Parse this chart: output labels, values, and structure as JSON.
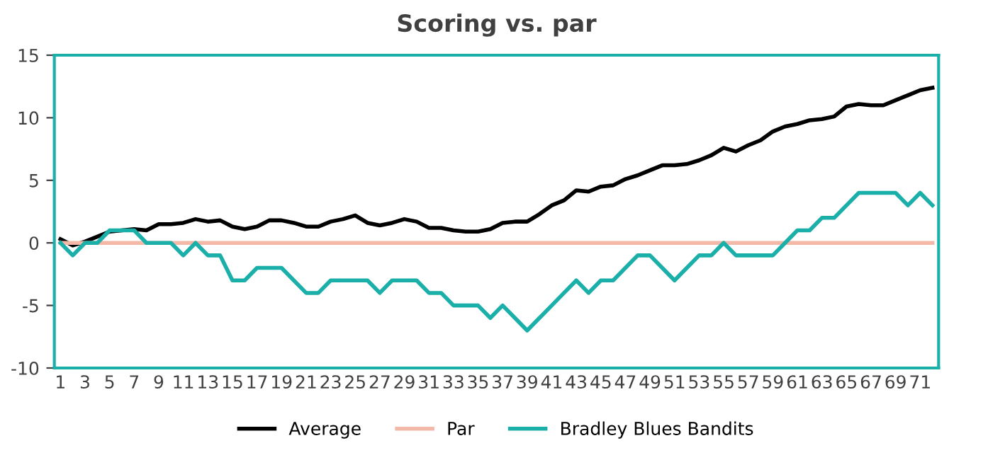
{
  "chart_data": {
    "type": "line",
    "title": "Scoring vs. par",
    "categories": [
      "1",
      null,
      "3",
      null,
      "5",
      null,
      "7",
      null,
      "9",
      null,
      "11",
      null,
      "13",
      null,
      "15",
      null,
      "17",
      null,
      "19",
      null,
      "21",
      null,
      "23",
      null,
      "25",
      null,
      "27",
      null,
      "29",
      null,
      "31",
      null,
      "33",
      null,
      "35",
      null,
      "37",
      null,
      "39",
      null,
      "41",
      null,
      "43",
      null,
      "45",
      null,
      "47",
      null,
      "49",
      null,
      "51",
      null,
      "53",
      null,
      "55",
      null,
      "57",
      null,
      "59",
      null,
      "61",
      null,
      "63",
      null,
      "65",
      null,
      "67",
      null,
      "69",
      null,
      "71",
      null
    ],
    "series": [
      {
        "name": "Average",
        "color": "#000000",
        "values": [
          0.3,
          -0.2,
          0.1,
          0.5,
          0.9,
          1.0,
          1.1,
          1.0,
          1.5,
          1.5,
          1.6,
          1.9,
          1.7,
          1.8,
          1.3,
          1.1,
          1.3,
          1.8,
          1.8,
          1.6,
          1.3,
          1.3,
          1.7,
          1.9,
          2.2,
          1.6,
          1.4,
          1.6,
          1.9,
          1.7,
          1.2,
          1.2,
          1.0,
          0.9,
          0.9,
          1.1,
          1.6,
          1.7,
          1.7,
          2.3,
          3.0,
          3.4,
          4.2,
          4.1,
          4.5,
          4.6,
          5.1,
          5.4,
          5.8,
          6.2,
          6.2,
          6.3,
          6.6,
          7.0,
          7.6,
          7.3,
          7.8,
          8.2,
          8.9,
          9.3,
          9.5,
          9.8,
          9.9,
          10.1,
          10.9,
          11.1,
          11.0,
          11.0,
          11.4,
          11.8,
          12.2,
          12.4
        ]
      },
      {
        "name": "Par",
        "color": "#f4b8a8",
        "values": [
          0,
          0,
          0,
          0,
          0,
          0,
          0,
          0,
          0,
          0,
          0,
          0,
          0,
          0,
          0,
          0,
          0,
          0,
          0,
          0,
          0,
          0,
          0,
          0,
          0,
          0,
          0,
          0,
          0,
          0,
          0,
          0,
          0,
          0,
          0,
          0,
          0,
          0,
          0,
          0,
          0,
          0,
          0,
          0,
          0,
          0,
          0,
          0,
          0,
          0,
          0,
          0,
          0,
          0,
          0,
          0,
          0,
          0,
          0,
          0,
          0,
          0,
          0,
          0,
          0,
          0,
          0,
          0,
          0,
          0,
          0,
          0
        ]
      },
      {
        "name": "Bradley Blues Bandits",
        "color": "#1aafa8",
        "values": [
          0,
          -1,
          0,
          0,
          1,
          1,
          1,
          0,
          0,
          0,
          -1,
          0,
          -1,
          -1,
          -3,
          -3,
          -2,
          -2,
          -2,
          -3,
          -4,
          -4,
          -3,
          -3,
          -3,
          -3,
          -4,
          -3,
          -3,
          -3,
          -4,
          -4,
          -5,
          -5,
          -5,
          -6,
          -5,
          -6,
          -7,
          -6,
          -5,
          -4,
          -3,
          -4,
          -3,
          -3,
          -2,
          -1,
          -1,
          -2,
          -3,
          -2,
          -1,
          -1,
          0,
          -1,
          -1,
          -1,
          -1,
          0,
          1,
          1,
          2,
          2,
          3,
          4,
          4,
          4,
          4,
          3,
          4,
          3
        ]
      }
    ],
    "ylim": [
      -10,
      15
    ],
    "yticks": [
      -10,
      -5,
      0,
      5,
      10,
      15
    ],
    "grid": false,
    "legend": "bottom",
    "marker": "none",
    "line_style": "solid"
  }
}
